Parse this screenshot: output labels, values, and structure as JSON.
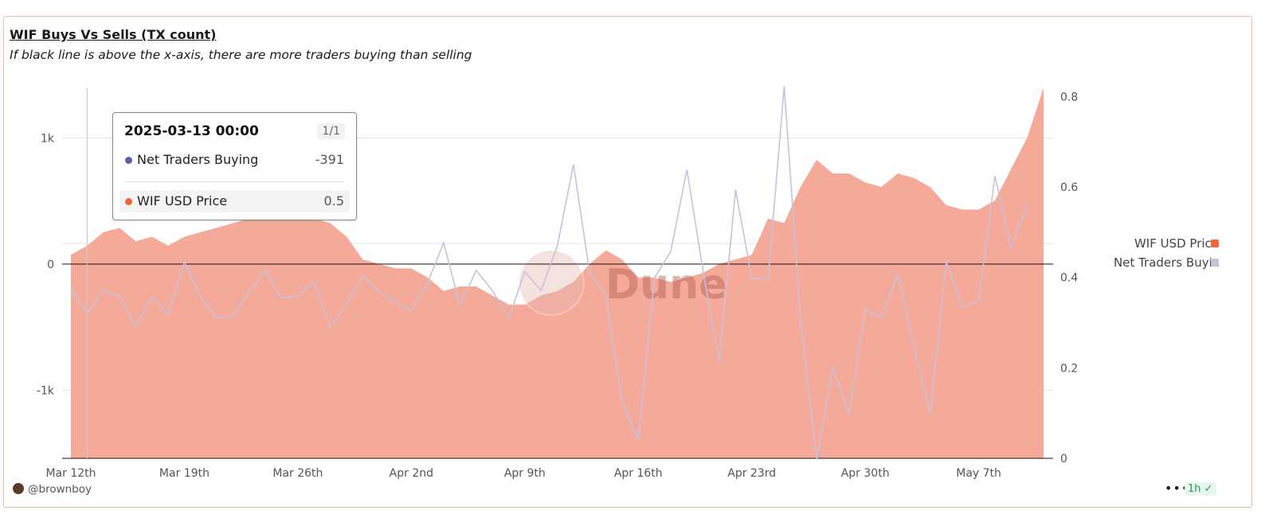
{
  "header": {
    "title": "WIF Buys Vs Sells (TX count)",
    "subtitle": "If black line is above the x-axis, there are more traders buying than selling"
  },
  "tooltip": {
    "date": "2025-03-13 00:00",
    "count": "1/1",
    "rows": [
      {
        "label": "Net Traders Buying",
        "value": "-391",
        "color": "#5b5ea6"
      },
      {
        "label": "WIF USD Price",
        "value": "0.5",
        "color": "#f0643c"
      }
    ]
  },
  "watermark": "Dune",
  "footer": {
    "author": "@brownboy",
    "more_label": "•••",
    "refresh_label": "1h ✓"
  },
  "colors": {
    "price_fill": "#f5a998",
    "price_legend": "#f0643c",
    "net_line": "#c7c2da",
    "net_legend": "#c7c2da"
  },
  "chart_data": {
    "type": "line",
    "x_tick_labels": [
      "Mar 12th",
      "Mar 19th",
      "Mar 26th",
      "Apr 2nd",
      "Apr 9th",
      "Apr 16th",
      "Apr 23rd",
      "Apr 30th",
      "May 7th"
    ],
    "y_left_ticks": [
      "1k",
      "0",
      "-1k"
    ],
    "y_left_tick_values": [
      1000,
      0,
      -1000
    ],
    "y_right_ticks": [
      "0.8",
      "0.6",
      "0.4",
      "0.2",
      "0"
    ],
    "y_right_tick_values": [
      0.8,
      0.6,
      0.4,
      0.2,
      0
    ],
    "y_left_range": [
      -1540,
      1400
    ],
    "y_right_range": [
      0,
      0.82
    ],
    "x_start": "Mar 12th",
    "series": [
      {
        "name": "WIF USD Price",
        "axis": "right",
        "style": "area",
        "values": [
          0.45,
          0.47,
          0.5,
          0.51,
          0.48,
          0.49,
          0.47,
          0.49,
          0.5,
          0.51,
          0.52,
          0.53,
          0.56,
          0.6,
          0.6,
          0.53,
          0.52,
          0.49,
          0.44,
          0.43,
          0.42,
          0.42,
          0.4,
          0.37,
          0.38,
          0.38,
          0.36,
          0.34,
          0.34,
          0.36,
          0.37,
          0.39,
          0.43,
          0.46,
          0.44,
          0.4,
          0.4,
          0.39,
          0.4,
          0.41,
          0.43,
          0.44,
          0.45,
          0.53,
          0.52,
          0.6,
          0.66,
          0.63,
          0.63,
          0.61,
          0.6,
          0.63,
          0.62,
          0.6,
          0.56,
          0.55,
          0.55,
          0.57,
          0.64,
          0.71,
          0.82
        ]
      },
      {
        "name": "Net Traders Buying",
        "axis": "left",
        "style": "line",
        "values": [
          -190,
          -391,
          -210,
          -250,
          -500,
          -260,
          -400,
          20,
          -260,
          -430,
          -410,
          -220,
          -50,
          -270,
          -250,
          -140,
          -500,
          -320,
          -90,
          -220,
          -300,
          -370,
          -150,
          170,
          -330,
          -50,
          -210,
          -430,
          -60,
          -210,
          140,
          790,
          -70,
          -250,
          -1090,
          -1400,
          -110,
          100,
          750,
          -60,
          -770,
          590,
          -110,
          -130,
          1410,
          -430,
          -1550,
          -820,
          -1190,
          -360,
          -430,
          -80,
          -650,
          -1180,
          20,
          -340,
          -290,
          700,
          130,
          470
        ]
      }
    ],
    "legend": {
      "position": "right",
      "entries": [
        "WIF USD Price",
        "Net Traders Buying"
      ]
    },
    "hover_marker_index": 1,
    "grid": true
  }
}
